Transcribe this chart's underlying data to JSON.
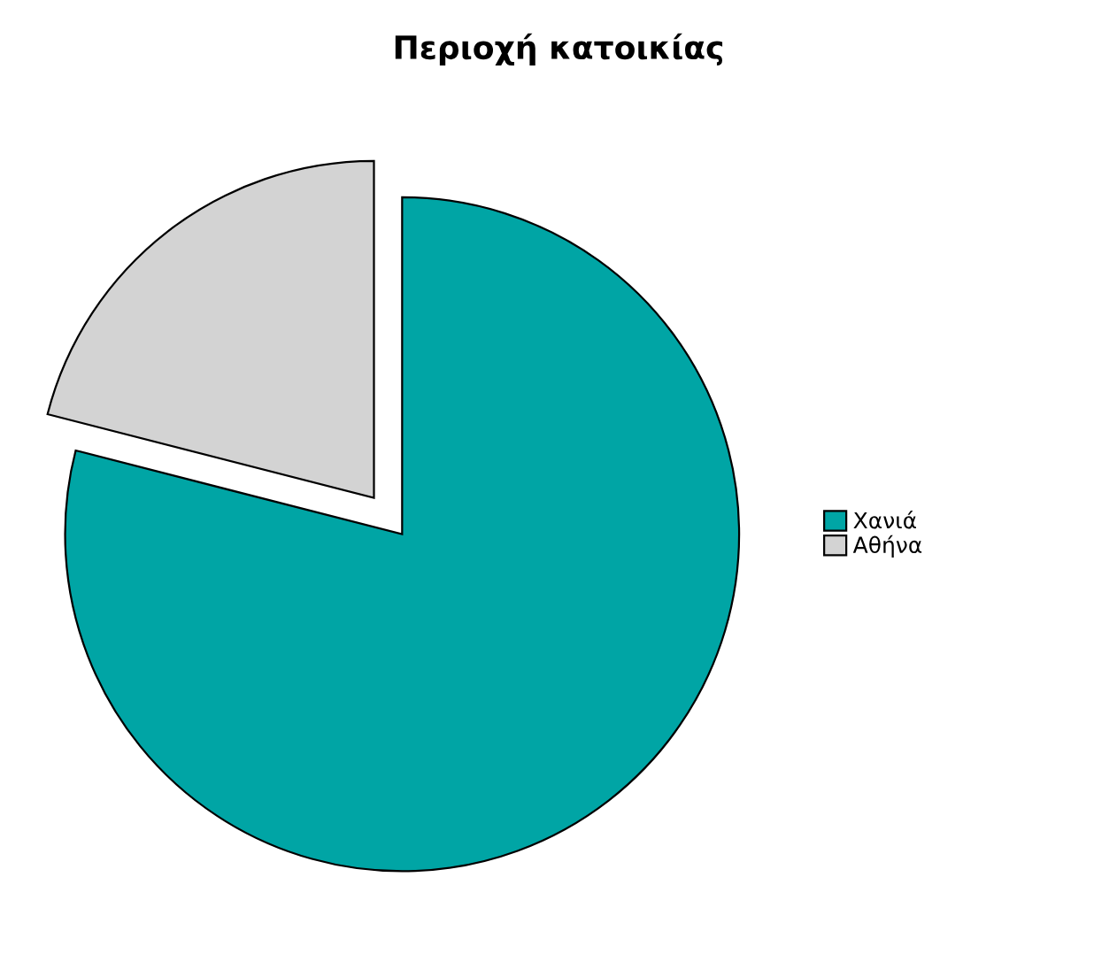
{
  "chart_data": {
    "type": "pie",
    "title": "Περιοχή κατοικίας",
    "categories": [
      "Χανιά",
      "Αθήνα"
    ],
    "values": [
      79,
      21
    ],
    "colors": [
      "#00a5a5",
      "#d3d3d3"
    ],
    "legend": "right"
  }
}
